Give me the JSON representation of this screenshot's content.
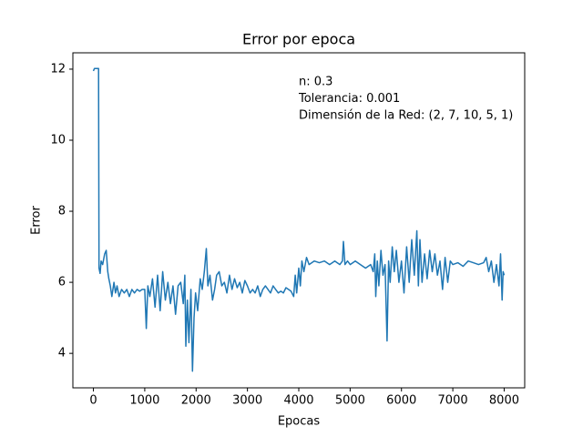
{
  "chart_data": {
    "type": "line",
    "title": "Error por epoca",
    "x_label": "Epocas",
    "y_label": "Error",
    "annotations": [
      "n: 0.3",
      "Tolerancia: 0.001",
      "Dimensión de la Red: (2, 7, 10, 5, 1)"
    ],
    "xlim": [
      -400,
      8400
    ],
    "xticks": [
      0,
      1000,
      2000,
      3000,
      4000,
      5000,
      6000,
      7000,
      8000
    ],
    "ylim": [
      3.03,
      12.46
    ],
    "yticks": [
      4,
      6,
      8,
      10,
      12
    ],
    "series": [
      {
        "name": "Error",
        "color": "#1f77b4",
        "x": [
          0,
          20,
          100,
          110,
          130,
          150,
          180,
          220,
          250,
          280,
          300,
          330,
          360,
          400,
          430,
          460,
          500,
          550,
          600,
          650,
          700,
          750,
          800,
          850,
          900,
          950,
          1000,
          1030,
          1060,
          1100,
          1150,
          1200,
          1250,
          1300,
          1350,
          1400,
          1450,
          1500,
          1550,
          1600,
          1650,
          1700,
          1750,
          1780,
          1800,
          1830,
          1860,
          1900,
          1930,
          1960,
          1990,
          2030,
          2080,
          2120,
          2160,
          2200,
          2230,
          2270,
          2320,
          2360,
          2400,
          2450,
          2500,
          2550,
          2600,
          2650,
          2700,
          2750,
          2800,
          2850,
          2900,
          2950,
          3000,
          3050,
          3100,
          3150,
          3200,
          3250,
          3300,
          3350,
          3400,
          3450,
          3500,
          3550,
          3600,
          3650,
          3700,
          3750,
          3800,
          3850,
          3900,
          3930,
          3960,
          4000,
          4030,
          4060,
          4100,
          4150,
          4200,
          4300,
          4400,
          4500,
          4600,
          4700,
          4800,
          4850,
          4870,
          4900,
          4950,
          5000,
          5100,
          5200,
          5300,
          5400,
          5450,
          5480,
          5500,
          5530,
          5560,
          5600,
          5640,
          5680,
          5720,
          5750,
          5780,
          5820,
          5860,
          5900,
          5950,
          6000,
          6050,
          6100,
          6150,
          6200,
          6250,
          6300,
          6330,
          6360,
          6400,
          6450,
          6500,
          6550,
          6600,
          6650,
          6700,
          6750,
          6800,
          6850,
          6900,
          6950,
          7000,
          7100,
          7200,
          7300,
          7400,
          7500,
          7600,
          7650,
          7700,
          7750,
          7800,
          7850,
          7900,
          7930,
          7960,
          7980,
          8000
        ],
        "values": [
          11.95,
          12.02,
          12.02,
          6.4,
          6.25,
          6.6,
          6.5,
          6.8,
          6.9,
          6.3,
          6.1,
          5.9,
          5.6,
          6.0,
          5.7,
          5.9,
          5.6,
          5.8,
          5.7,
          5.8,
          5.6,
          5.8,
          5.7,
          5.8,
          5.75,
          5.8,
          5.8,
          4.7,
          5.9,
          5.6,
          6.1,
          5.3,
          6.2,
          5.2,
          6.3,
          5.5,
          6.0,
          5.4,
          5.9,
          5.1,
          5.9,
          6.0,
          5.4,
          6.2,
          4.2,
          5.5,
          4.3,
          5.8,
          3.5,
          5.0,
          5.7,
          5.2,
          6.1,
          5.8,
          6.3,
          6.95,
          5.9,
          6.2,
          5.5,
          5.8,
          6.2,
          6.3,
          5.9,
          6.0,
          5.7,
          6.2,
          5.8,
          6.1,
          5.85,
          6.0,
          5.7,
          6.05,
          5.9,
          5.7,
          5.8,
          5.7,
          5.9,
          5.6,
          5.8,
          5.9,
          5.8,
          5.7,
          5.9,
          5.8,
          5.7,
          5.75,
          5.7,
          5.85,
          5.8,
          5.75,
          5.6,
          6.2,
          5.7,
          6.4,
          5.9,
          6.6,
          6.3,
          6.7,
          6.5,
          6.6,
          6.55,
          6.6,
          6.5,
          6.6,
          6.5,
          6.6,
          7.15,
          6.5,
          6.6,
          6.5,
          6.6,
          6.5,
          6.4,
          6.5,
          6.3,
          6.8,
          5.6,
          6.6,
          5.9,
          6.9,
          6.2,
          6.5,
          4.35,
          6.6,
          6.0,
          7.0,
          6.3,
          6.9,
          6.0,
          6.6,
          5.7,
          7.0,
          6.0,
          7.2,
          6.2,
          7.45,
          5.9,
          7.2,
          6.0,
          6.8,
          6.1,
          6.9,
          6.3,
          6.8,
          6.2,
          6.6,
          5.8,
          6.7,
          6.0,
          6.6,
          6.5,
          6.55,
          6.45,
          6.6,
          6.55,
          6.5,
          6.55,
          6.7,
          6.3,
          6.6,
          6.0,
          6.5,
          5.9,
          6.8,
          5.5,
          6.3,
          6.2
        ]
      }
    ]
  }
}
